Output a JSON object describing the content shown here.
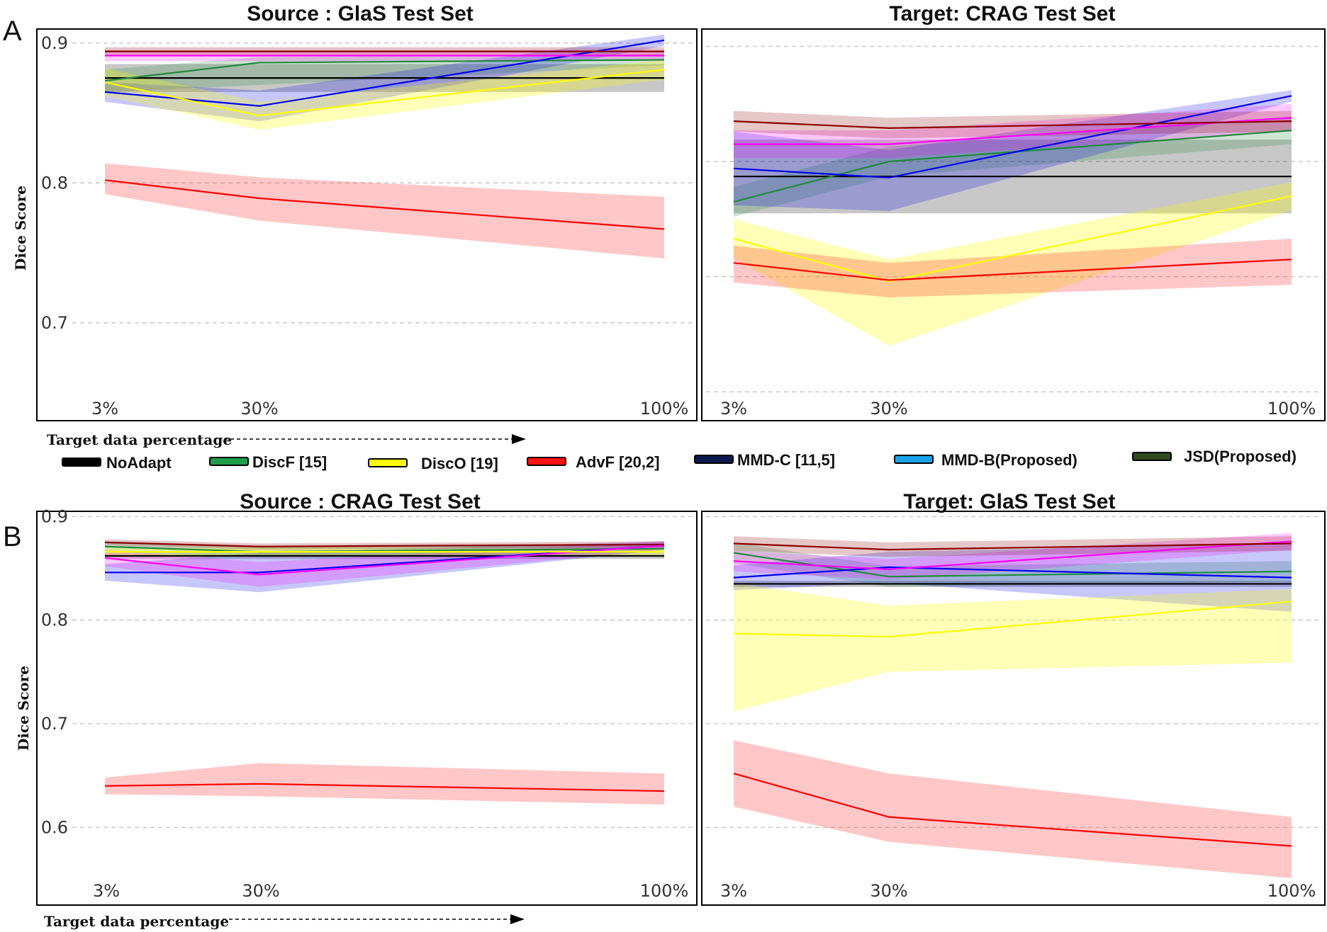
{
  "figure": {
    "panel_letters": [
      "A",
      "B"
    ],
    "axis_y_label": "Dice Score",
    "axis_x_label": "Target data percentage"
  },
  "legend": [
    {
      "label": "NoAdapt",
      "color": "#000000"
    },
    {
      "label": "DiscF [15]",
      "color": "#1f9e4a"
    },
    {
      "label": "DiscO [19]",
      "color": "#ffff00"
    },
    {
      "label": "AdvF [20,2]",
      "color": "#ff1010"
    },
    {
      "label": "MMD-C [11,5]",
      "color": "#0d1a4d"
    },
    {
      "label": "MMD-B(Proposed)",
      "color": "#1aa3e8"
    },
    {
      "label": "JSD(Proposed)",
      "color": "#2f4a1f"
    }
  ],
  "chart_data": [
    {
      "type": "line",
      "title": "Source : GlaS Test Set",
      "xlabel": "Target data percentage",
      "ylabel": "Dice Score",
      "categories": [
        "3%",
        "30%",
        "100%"
      ],
      "yticks": [
        "0.9",
        "0.8",
        "0.7"
      ],
      "ytick_values": [
        0.9,
        0.8,
        0.7
      ],
      "ylim": [
        0.63,
        0.91
      ],
      "grid": true,
      "series": [
        {
          "name": "NoAdapt",
          "color": "#000000",
          "values": [
            0.875,
            0.875,
            0.875
          ],
          "lower": [
            0.865,
            0.865,
            0.865
          ],
          "upper": [
            0.885,
            0.885,
            0.885
          ]
        },
        {
          "name": "DiscF [15]",
          "color": "#1f8a3a",
          "values": [
            0.873,
            0.886,
            0.888
          ],
          "lower": [
            0.865,
            0.87,
            0.884
          ],
          "upper": [
            0.881,
            0.89,
            0.892
          ]
        },
        {
          "name": "DiscO [19]",
          "color": "#ffff00",
          "values": [
            0.872,
            0.848,
            0.881
          ],
          "lower": [
            0.862,
            0.838,
            0.874
          ],
          "upper": [
            0.882,
            0.858,
            0.888
          ]
        },
        {
          "name": "AdvF [20,2]",
          "color": "#ff0000",
          "values": [
            0.802,
            0.789,
            0.767
          ],
          "lower": [
            0.792,
            0.773,
            0.746
          ],
          "upper": [
            0.814,
            0.804,
            0.79
          ]
        },
        {
          "name": "MMD-C [11,5]",
          "color": "#0000ee",
          "values": [
            0.865,
            0.855,
            0.902
          ],
          "lower": [
            0.858,
            0.844,
            0.898
          ],
          "upper": [
            0.872,
            0.866,
            0.906
          ]
        },
        {
          "name": "MMD-B(Proposed)",
          "color": "#ff00ff",
          "values": [
            0.891,
            0.891,
            0.891
          ],
          "lower": [
            0.887,
            0.887,
            0.887
          ],
          "upper": [
            0.895,
            0.895,
            0.895
          ]
        },
        {
          "name": "JSD(Proposed)",
          "color": "#8b0000",
          "values": [
            0.894,
            0.894,
            0.894
          ],
          "lower": [
            0.891,
            0.891,
            0.891
          ],
          "upper": [
            0.897,
            0.897,
            0.897
          ]
        }
      ]
    },
    {
      "type": "line",
      "title": "Target: CRAG Test Set",
      "xlabel": "Target data percentage",
      "ylabel": "Dice Score",
      "categories": [
        "3%",
        "30%",
        "100%"
      ],
      "yticks": [
        "",
        "",
        "",
        ""
      ],
      "ytick_values": [
        0.9,
        0.8,
        0.7,
        0.6
      ],
      "ylim": [
        0.575,
        0.915
      ],
      "grid": true,
      "series": [
        {
          "name": "NoAdapt",
          "color": "#000000",
          "values": [
            0.787,
            0.787,
            0.787
          ],
          "lower": [
            0.755,
            0.755,
            0.755
          ],
          "upper": [
            0.819,
            0.819,
            0.819
          ]
        },
        {
          "name": "DiscF [15]",
          "color": "#1f8a3a",
          "values": [
            0.765,
            0.8,
            0.827
          ],
          "lower": [
            0.752,
            0.787,
            0.815
          ],
          "upper": [
            0.778,
            0.813,
            0.839
          ]
        },
        {
          "name": "DiscO [19]",
          "color": "#ffff00",
          "values": [
            0.733,
            0.696,
            0.77
          ],
          "lower": [
            0.716,
            0.64,
            0.758
          ],
          "upper": [
            0.75,
            0.715,
            0.782
          ]
        },
        {
          "name": "AdvF [20,2]",
          "color": "#ff0000",
          "values": [
            0.712,
            0.697,
            0.715
          ],
          "lower": [
            0.695,
            0.682,
            0.693
          ],
          "upper": [
            0.727,
            0.712,
            0.733
          ]
        },
        {
          "name": "MMD-C [11,5]",
          "color": "#0000ee",
          "values": [
            0.794,
            0.786,
            0.857
          ],
          "lower": [
            0.762,
            0.757,
            0.852
          ],
          "upper": [
            0.826,
            0.81,
            0.862
          ]
        },
        {
          "name": "MMD-B(Proposed)",
          "color": "#ff00ff",
          "values": [
            0.815,
            0.815,
            0.838
          ],
          "lower": [
            0.803,
            0.803,
            0.826
          ],
          "upper": [
            0.827,
            0.827,
            0.85
          ]
        },
        {
          "name": "JSD(Proposed)",
          "color": "#8b0000",
          "values": [
            0.835,
            0.829,
            0.835
          ],
          "lower": [
            0.826,
            0.82,
            0.826
          ],
          "upper": [
            0.844,
            0.838,
            0.844
          ]
        }
      ]
    },
    {
      "type": "line",
      "title": "Source : CRAG Test Set",
      "xlabel": "Target data percentage",
      "ylabel": "Dice Score",
      "categories": [
        "3%",
        "30%",
        "100%"
      ],
      "yticks": [
        "0.9",
        "0.8",
        "0.7",
        "0.6"
      ],
      "ytick_values": [
        0.9,
        0.8,
        0.7,
        0.6
      ],
      "ylim": [
        0.525,
        0.905
      ],
      "grid": true,
      "series": [
        {
          "name": "NoAdapt",
          "color": "#000000",
          "values": [
            0.862,
            0.862,
            0.862
          ],
          "lower": [
            0.859,
            0.859,
            0.859
          ],
          "upper": [
            0.865,
            0.865,
            0.865
          ]
        },
        {
          "name": "DiscF [15]",
          "color": "#1f8a3a",
          "values": [
            0.871,
            0.866,
            0.869
          ],
          "lower": [
            0.866,
            0.861,
            0.865
          ],
          "upper": [
            0.876,
            0.871,
            0.873
          ]
        },
        {
          "name": "DiscO [19]",
          "color": "#ffff00",
          "values": [
            0.866,
            0.866,
            0.866
          ],
          "lower": [
            0.862,
            0.862,
            0.862
          ],
          "upper": [
            0.87,
            0.87,
            0.87
          ]
        },
        {
          "name": "AdvF [20,2]",
          "color": "#ff0000",
          "values": [
            0.64,
            0.642,
            0.635
          ],
          "lower": [
            0.632,
            0.63,
            0.622
          ],
          "upper": [
            0.648,
            0.662,
            0.652
          ]
        },
        {
          "name": "MMD-C [11,5]",
          "color": "#0000ee",
          "values": [
            0.846,
            0.846,
            0.872
          ],
          "lower": [
            0.838,
            0.827,
            0.868
          ],
          "upper": [
            0.854,
            0.865,
            0.876
          ]
        },
        {
          "name": "MMD-B(Proposed)",
          "color": "#ff00ff",
          "values": [
            0.86,
            0.844,
            0.872
          ],
          "lower": [
            0.852,
            0.832,
            0.868
          ],
          "upper": [
            0.868,
            0.856,
            0.876
          ]
        },
        {
          "name": "JSD(Proposed)",
          "color": "#8b0000",
          "values": [
            0.875,
            0.871,
            0.873
          ],
          "lower": [
            0.872,
            0.868,
            0.87
          ],
          "upper": [
            0.878,
            0.874,
            0.876
          ]
        }
      ]
    },
    {
      "type": "line",
      "title": "Target: GlaS Test Set",
      "xlabel": "Target data percentage",
      "ylabel": "Dice Score",
      "categories": [
        "3%",
        "30%",
        "100%"
      ],
      "yticks": [
        "",
        "",
        "",
        ""
      ],
      "ytick_values": [
        0.9,
        0.8,
        0.7,
        0.6
      ],
      "ylim": [
        0.525,
        0.905
      ],
      "grid": true,
      "series": [
        {
          "name": "NoAdapt",
          "color": "#000000",
          "values": [
            0.835,
            0.835,
            0.835
          ],
          "lower": [
            0.832,
            0.832,
            0.832
          ],
          "upper": [
            0.838,
            0.838,
            0.838
          ]
        },
        {
          "name": "DiscF [15]",
          "color": "#1f8a3a",
          "values": [
            0.865,
            0.842,
            0.847
          ],
          "lower": [
            0.855,
            0.832,
            0.837
          ],
          "upper": [
            0.875,
            0.852,
            0.857
          ]
        },
        {
          "name": "DiscO [19]",
          "color": "#ffff00",
          "values": [
            0.787,
            0.784,
            0.818
          ],
          "lower": [
            0.712,
            0.75,
            0.759
          ],
          "upper": [
            0.836,
            0.814,
            0.83
          ]
        },
        {
          "name": "AdvF [20,2]",
          "color": "#ff0000",
          "values": [
            0.652,
            0.61,
            0.582
          ],
          "lower": [
            0.62,
            0.586,
            0.551
          ],
          "upper": [
            0.684,
            0.652,
            0.61
          ]
        },
        {
          "name": "MMD-C [11,5]",
          "color": "#0000ee",
          "values": [
            0.841,
            0.851,
            0.841
          ],
          "lower": [
            0.829,
            0.836,
            0.808
          ],
          "upper": [
            0.853,
            0.866,
            0.874
          ]
        },
        {
          "name": "MMD-B(Proposed)",
          "color": "#ff00ff",
          "values": [
            0.857,
            0.849,
            0.876
          ],
          "lower": [
            0.847,
            0.839,
            0.868
          ],
          "upper": [
            0.867,
            0.859,
            0.884
          ]
        },
        {
          "name": "JSD(Proposed)",
          "color": "#8b0000",
          "values": [
            0.874,
            0.868,
            0.874
          ],
          "lower": [
            0.867,
            0.861,
            0.867
          ],
          "upper": [
            0.881,
            0.875,
            0.881
          ]
        }
      ]
    }
  ]
}
